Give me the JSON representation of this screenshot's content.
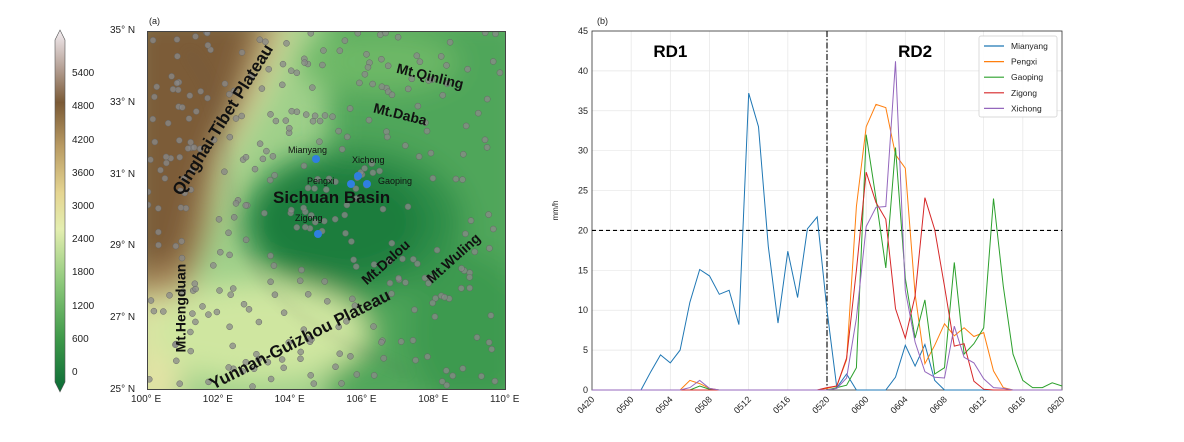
{
  "map_panel": {
    "label": "(a)",
    "colorbar_ticks": [
      "0",
      "600",
      "1200",
      "1800",
      "2400",
      "3000",
      "3600",
      "4200",
      "4800",
      "5400"
    ],
    "lat_ticks": [
      "25° N",
      "27° N",
      "29° N",
      "31° N",
      "33° N",
      "35° N"
    ],
    "lon_ticks": [
      "100° E",
      "102° E",
      "104° E",
      "106° E",
      "108° E",
      "110° E"
    ],
    "regions": {
      "qinghai": "Qinghai-Tibet Plateau",
      "qinling": "Mt.Qinling",
      "daba": "Mt.Daba",
      "basin": "Sichuan Basin",
      "dalou": "Mt.Dalou",
      "wuling": "Mt.Wuling",
      "hengduan": "Mt.Hengduan",
      "yungui": "Yunnan-Guizhou Plateau"
    },
    "stations": {
      "mianyang": "Mianyang",
      "xichong": "Xichong",
      "pengxi": "Pengxi",
      "gaoping": "Gaoping",
      "zigong": "Zigong"
    },
    "colors": {
      "station": "#2f7fe0",
      "gauge": "#8a8a8a"
    }
  },
  "chart_data": {
    "type": "line",
    "panel_label": "(b)",
    "title": "",
    "xlabel": "",
    "ylabel": "mm/h",
    "ylim": [
      0,
      45
    ],
    "yticks": [
      "0",
      "5",
      "10",
      "15",
      "20",
      "25",
      "30",
      "35",
      "40",
      "45"
    ],
    "xticks": [
      "0420",
      "0500",
      "0504",
      "0508",
      "0512",
      "0516",
      "0520",
      "0600",
      "0604",
      "0608",
      "0612",
      "0616",
      "0620"
    ],
    "x_unit": "hour index from 0420 (DDHH), 49 hourly points",
    "threshold": 20,
    "divider_index": 24,
    "annotations": [
      "RD1",
      "RD2"
    ],
    "legend_position": "top-right",
    "grid": true,
    "series": [
      {
        "name": "Mianyang",
        "color": "#1f77b4",
        "values": [
          0,
          0,
          0,
          0,
          0,
          0,
          2.3,
          4.4,
          3.4,
          5,
          11,
          15.1,
          14.3,
          12,
          12.5,
          8.2,
          37.2,
          33,
          18,
          8.4,
          17.4,
          11.6,
          20.2,
          21.7,
          10,
          0.3,
          2,
          0,
          0,
          0,
          0,
          1.6,
          5.6,
          3,
          5.7,
          1.2,
          0,
          0,
          0,
          0,
          0,
          0,
          0,
          0,
          0,
          0,
          0,
          0,
          0
        ]
      },
      {
        "name": "Pengxi",
        "color": "#ff7f0e",
        "values": [
          0,
          0,
          0,
          0,
          0,
          0,
          0,
          0,
          0,
          0,
          1.2,
          0.8,
          0.2,
          0,
          0,
          0,
          0,
          0,
          0,
          0,
          0,
          0,
          0,
          0,
          0.2,
          0.5,
          3.8,
          23,
          33,
          35.8,
          35.4,
          29.5,
          27.8,
          12,
          3.3,
          5.6,
          8.3,
          6.8,
          7.8,
          6.7,
          7.2,
          2.4,
          0.3,
          0,
          0,
          0,
          0,
          0,
          0
        ]
      },
      {
        "name": "Gaoping",
        "color": "#2ca02c",
        "values": [
          0,
          0,
          0,
          0,
          0,
          0,
          0,
          0,
          0,
          0,
          0,
          0.5,
          0.1,
          0,
          0,
          0,
          0,
          0,
          0,
          0,
          0,
          0,
          0,
          0,
          0,
          0.3,
          0.6,
          2.8,
          32,
          24,
          15.3,
          30.4,
          14,
          6.5,
          11.3,
          2,
          2.8,
          16,
          4.5,
          5.8,
          7.8,
          24,
          13,
          4.5,
          1.2,
          0.3,
          0.3,
          0.9,
          0.5
        ]
      },
      {
        "name": "Zigong",
        "color": "#d62728",
        "values": [
          0,
          0,
          0,
          0,
          0,
          0,
          0,
          0,
          0,
          0,
          0,
          0,
          0,
          0,
          0,
          0,
          0,
          0,
          0,
          0,
          0,
          0,
          0,
          0,
          0.3,
          0.5,
          4,
          15,
          27.3,
          23.5,
          21.4,
          10.2,
          6.5,
          11.8,
          24.1,
          20.1,
          13,
          5.5,
          5.8,
          1.1,
          0.1,
          0,
          0,
          0,
          0,
          0,
          0,
          0,
          0
        ]
      },
      {
        "name": "Xichong",
        "color": "#9467bd",
        "values": [
          0,
          0,
          0,
          0,
          0,
          0,
          0,
          0,
          0,
          0,
          0.3,
          1.2,
          0.2,
          0,
          0,
          0,
          0,
          0,
          0,
          0,
          0,
          0,
          0,
          0,
          0,
          0.2,
          1.5,
          9,
          20.5,
          22.9,
          23,
          41.2,
          12.5,
          6,
          2.3,
          1.6,
          1.5,
          8,
          4.1,
          3.4,
          1.4,
          0.3,
          0.2,
          0,
          0,
          0,
          0,
          0,
          0
        ]
      }
    ]
  }
}
